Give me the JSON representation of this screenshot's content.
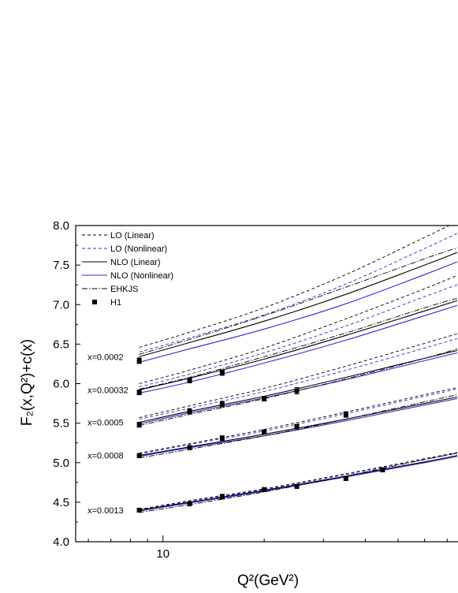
{
  "chart_data": {
    "type": "line",
    "xlabel": "Q²(GeV²)",
    "ylabel": "F₂(x,Q²)+c(x)",
    "x_scale": "log",
    "xlim": [
      5.5,
      75
    ],
    "ylim": [
      4.0,
      8.0
    ],
    "y_ticks": [
      "4.0",
      "4.5",
      "5.0",
      "5.5",
      "6.0",
      "6.5",
      "7.0",
      "7.5",
      "8.0"
    ],
    "x_ticks": [
      "10"
    ],
    "grid": false,
    "legend_position": "top-left",
    "legend": [
      {
        "label": "LO   (Linear)",
        "color": "#000000",
        "dash": "4,3",
        "marker": "none"
      },
      {
        "label": "LO   (Nonlinear)",
        "color": "#2b2bd8",
        "dash": "4,3",
        "marker": "none"
      },
      {
        "label": "NLO (Linear)",
        "color": "#000000",
        "dash": "",
        "marker": "none"
      },
      {
        "label": "NLO (Nonlinear)",
        "color": "#2b2bd8",
        "dash": "",
        "marker": "none"
      },
      {
        "label": "EHKJS",
        "color": "#000000",
        "dash": "7,2,1.5,2",
        "marker": "none"
      },
      {
        "label": "H1",
        "color": "#000000",
        "dash": "",
        "marker": "square"
      }
    ],
    "groups": [
      {
        "label": "x=0.0002",
        "curves": {
          "LO_linear": [
            [
              8.5,
              6.46
            ],
            [
              12,
              6.65
            ],
            [
              20,
              6.96
            ],
            [
              35,
              7.38
            ],
            [
              60,
              7.85
            ],
            [
              75,
              8.05
            ]
          ],
          "LO_nonlinear": [
            [
              8.5,
              6.4
            ],
            [
              12,
              6.58
            ],
            [
              20,
              6.87
            ],
            [
              35,
              7.26
            ],
            [
              60,
              7.71
            ],
            [
              75,
              7.9
            ]
          ],
          "NLO_linear": [
            [
              8.5,
              6.34
            ],
            [
              12,
              6.52
            ],
            [
              20,
              6.79
            ],
            [
              35,
              7.13
            ],
            [
              60,
              7.5
            ],
            [
              75,
              7.66
            ]
          ],
          "NLO_nonlinear": [
            [
              8.5,
              6.27
            ],
            [
              12,
              6.44
            ],
            [
              20,
              6.69
            ],
            [
              35,
              7.01
            ],
            [
              60,
              7.38
            ],
            [
              75,
              7.54
            ]
          ],
          "EHKJS": [
            [
              8.5,
              6.37
            ],
            [
              12,
              6.56
            ],
            [
              20,
              6.86
            ],
            [
              35,
              7.22
            ],
            [
              60,
              7.58
            ],
            [
              75,
              7.72
            ]
          ]
        },
        "data": [
          {
            "x": 8.5,
            "y": 6.29,
            "err": 0.035
          }
        ]
      },
      {
        "label": "x=0.00032",
        "curves": {
          "LO_linear": [
            [
              8.5,
              6.0
            ],
            [
              12,
              6.17
            ],
            [
              20,
              6.45
            ],
            [
              35,
              6.82
            ],
            [
              60,
              7.2
            ],
            [
              75,
              7.37
            ]
          ],
          "LO_nonlinear": [
            [
              8.5,
              5.96
            ],
            [
              12,
              6.12
            ],
            [
              20,
              6.39
            ],
            [
              35,
              6.73
            ],
            [
              60,
              7.1
            ],
            [
              75,
              7.25
            ]
          ],
          "NLO_linear": [
            [
              8.5,
              5.92
            ],
            [
              12,
              6.07
            ],
            [
              20,
              6.31
            ],
            [
              35,
              6.61
            ],
            [
              60,
              6.92
            ],
            [
              75,
              7.05
            ]
          ],
          "NLO_nonlinear": [
            [
              8.5,
              5.88
            ],
            [
              12,
              6.02
            ],
            [
              20,
              6.26
            ],
            [
              35,
              6.55
            ],
            [
              60,
              6.86
            ],
            [
              75,
              6.99
            ]
          ],
          "EHKJS": [
            [
              8.5,
              5.93
            ],
            [
              12,
              6.08
            ],
            [
              20,
              6.34
            ],
            [
              35,
              6.64
            ],
            [
              60,
              6.96
            ],
            [
              75,
              7.08
            ]
          ]
        },
        "data": [
          {
            "x": 8.5,
            "y": 5.89,
            "err": 0.03
          },
          {
            "x": 12,
            "y": 6.04,
            "err": 0.03
          },
          {
            "x": 15,
            "y": 6.14,
            "err": 0.035
          }
        ]
      },
      {
        "label": "x=0.0005",
        "curves": {
          "LO_linear": [
            [
              8.5,
              5.57
            ],
            [
              12,
              5.72
            ],
            [
              20,
              5.94
            ],
            [
              35,
              6.22
            ],
            [
              60,
              6.51
            ],
            [
              75,
              6.63
            ]
          ],
          "LO_nonlinear": [
            [
              8.5,
              5.55
            ],
            [
              12,
              5.69
            ],
            [
              20,
              5.9
            ],
            [
              35,
              6.17
            ],
            [
              60,
              6.45
            ],
            [
              75,
              6.57
            ]
          ],
          "NLO_linear": [
            [
              8.5,
              5.51
            ],
            [
              12,
              5.65
            ],
            [
              20,
              5.84
            ],
            [
              35,
              6.08
            ],
            [
              60,
              6.32
            ],
            [
              75,
              6.42
            ]
          ],
          "NLO_nonlinear": [
            [
              8.5,
              5.49
            ],
            [
              12,
              5.63
            ],
            [
              20,
              5.82
            ],
            [
              35,
              6.05
            ],
            [
              60,
              6.29
            ],
            [
              75,
              6.39
            ]
          ],
          "EHKJS": [
            [
              8.5,
              5.47
            ],
            [
              12,
              5.61
            ],
            [
              20,
              5.81
            ],
            [
              35,
              6.06
            ],
            [
              60,
              6.32
            ],
            [
              75,
              6.44
            ]
          ]
        },
        "data": [
          {
            "x": 8.5,
            "y": 5.48,
            "err": 0.03
          },
          {
            "x": 12,
            "y": 5.65,
            "err": 0.03
          },
          {
            "x": 15,
            "y": 5.74,
            "err": 0.035
          },
          {
            "x": 20,
            "y": 5.81,
            "err": 0.03
          },
          {
            "x": 25,
            "y": 5.91,
            "err": 0.04
          }
        ]
      },
      {
        "label": "x=0.0008",
        "curves": {
          "LO_linear": [
            [
              8.5,
              5.12
            ],
            [
              12,
              5.24
            ],
            [
              20,
              5.42
            ],
            [
              35,
              5.64
            ],
            [
              60,
              5.86
            ],
            [
              75,
              5.95
            ]
          ],
          "LO_nonlinear": [
            [
              8.5,
              5.11
            ],
            [
              12,
              5.23
            ],
            [
              20,
              5.4
            ],
            [
              35,
              5.62
            ],
            [
              60,
              5.84
            ],
            [
              75,
              5.93
            ]
          ],
          "NLO_linear": [
            [
              8.5,
              5.09
            ],
            [
              12,
              5.2
            ],
            [
              20,
              5.36
            ],
            [
              35,
              5.55
            ],
            [
              60,
              5.75
            ],
            [
              75,
              5.83
            ]
          ],
          "NLO_nonlinear": [
            [
              8.5,
              5.08
            ],
            [
              12,
              5.19
            ],
            [
              20,
              5.34
            ],
            [
              35,
              5.53
            ],
            [
              60,
              5.73
            ],
            [
              75,
              5.81
            ]
          ],
          "EHKJS": [
            [
              8.5,
              5.06
            ],
            [
              12,
              5.17
            ],
            [
              20,
              5.34
            ],
            [
              35,
              5.55
            ],
            [
              60,
              5.77
            ],
            [
              75,
              5.86
            ]
          ]
        },
        "data": [
          {
            "x": 8.5,
            "y": 5.09,
            "err": 0.025
          },
          {
            "x": 12,
            "y": 5.19,
            "err": 0.025
          },
          {
            "x": 15,
            "y": 5.31,
            "err": 0.03
          },
          {
            "x": 20,
            "y": 5.39,
            "err": 0.025
          },
          {
            "x": 25,
            "y": 5.46,
            "err": 0.025
          },
          {
            "x": 35,
            "y": 5.61,
            "err": 0.035
          }
        ]
      },
      {
        "label": "x=0.0013",
        "curves": {
          "LO_linear": [
            [
              8.5,
              4.41
            ],
            [
              12,
              4.52
            ],
            [
              20,
              4.67
            ],
            [
              35,
              4.86
            ],
            [
              60,
              5.05
            ],
            [
              75,
              5.13
            ]
          ],
          "LO_nonlinear": [
            [
              8.5,
              4.4
            ],
            [
              12,
              4.51
            ],
            [
              20,
              4.66
            ],
            [
              35,
              4.85
            ],
            [
              60,
              5.04
            ],
            [
              75,
              5.12
            ]
          ],
          "NLO_linear": [
            [
              8.5,
              4.4
            ],
            [
              12,
              4.5
            ],
            [
              20,
              4.65
            ],
            [
              35,
              4.83
            ],
            [
              60,
              5.01
            ],
            [
              75,
              5.09
            ]
          ],
          "NLO_nonlinear": [
            [
              8.5,
              4.39
            ],
            [
              12,
              4.49
            ],
            [
              20,
              4.64
            ],
            [
              35,
              4.82
            ],
            [
              60,
              5.0
            ],
            [
              75,
              5.08
            ]
          ],
          "EHKJS": [
            [
              8.5,
              4.37
            ],
            [
              12,
              4.47
            ],
            [
              20,
              4.63
            ],
            [
              35,
              4.83
            ],
            [
              60,
              5.04
            ],
            [
              75,
              5.12
            ]
          ]
        },
        "data": [
          {
            "x": 8.5,
            "y": 4.4,
            "err": 0.02
          },
          {
            "x": 12,
            "y": 4.48,
            "err": 0.025
          },
          {
            "x": 15,
            "y": 4.57,
            "err": 0.03
          },
          {
            "x": 20,
            "y": 4.66,
            "err": 0.025
          },
          {
            "x": 25,
            "y": 4.7,
            "err": 0.025
          },
          {
            "x": 35,
            "y": 4.8,
            "err": 0.025
          },
          {
            "x": 45,
            "y": 4.91,
            "err": 0.025
          }
        ]
      }
    ]
  }
}
